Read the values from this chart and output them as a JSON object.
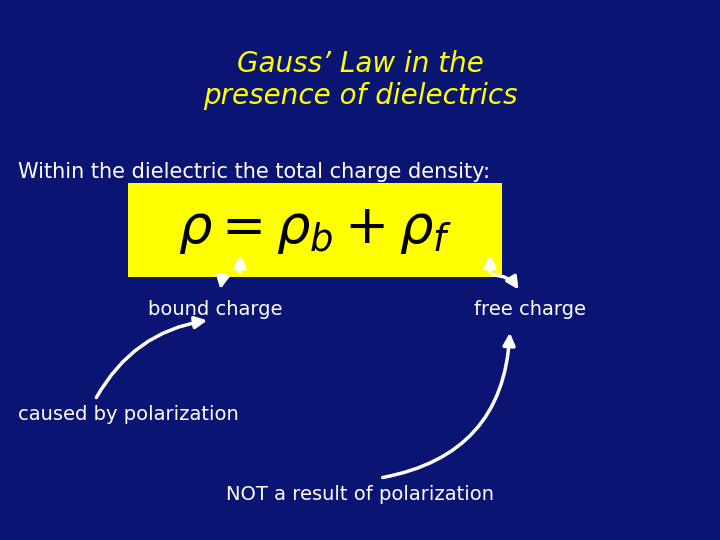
{
  "bg_color": "#0a1472",
  "title": "Gauss’ Law in the\npresence of dielectrics",
  "title_color": "#ffff00",
  "title_fontsize": 20,
  "subtitle": "Within the dielectric the total charge density:",
  "subtitle_color": "#ffffff",
  "subtitle_fontsize": 15,
  "formula_bg": "#ffff00",
  "formula_color": "#000000",
  "formula_fontsize": 38,
  "arrow_color": "#ffffff",
  "label_bound": "bound charge",
  "label_free": "free charge",
  "label_caused": "caused by polarization",
  "label_not": "NOT a result of polarization",
  "label_color": "#ffffff",
  "label_fontsize": 14
}
